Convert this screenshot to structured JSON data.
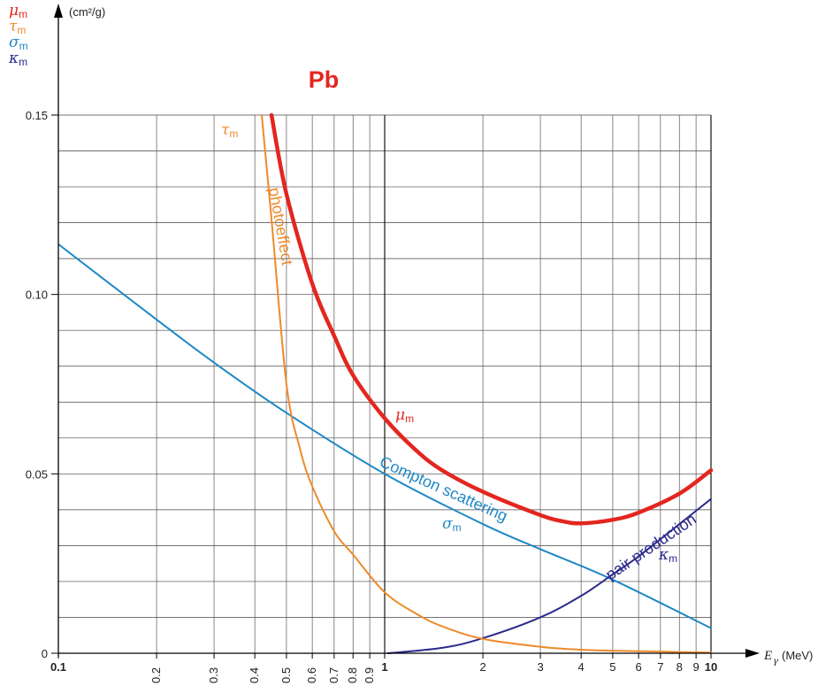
{
  "chart_data": {
    "type": "line",
    "title": "Pb",
    "xlabel_symbol": "E",
    "xlabel_subscript": "γ",
    "xlabel_unit": "(MeV)",
    "ylabel_unit": "(cm²/g)",
    "x_scale": "log",
    "xlim": [
      0.1,
      10
    ],
    "ylim": [
      0,
      0.15
    ],
    "grid": true,
    "x_ticks": [
      {
        "value": 0.1,
        "label": "0.1",
        "major": true
      },
      {
        "value": 0.2,
        "label": "0.2",
        "major": false
      },
      {
        "value": 0.3,
        "label": "0.3",
        "major": false
      },
      {
        "value": 0.4,
        "label": "0.4",
        "major": false
      },
      {
        "value": 0.5,
        "label": "0.5",
        "major": false
      },
      {
        "value": 0.6,
        "label": "0.6",
        "major": false
      },
      {
        "value": 0.7,
        "label": "0.7",
        "major": false
      },
      {
        "value": 0.8,
        "label": "0.8",
        "major": false
      },
      {
        "value": 0.9,
        "label": "0.9",
        "major": false
      },
      {
        "value": 1,
        "label": "1",
        "major": true
      },
      {
        "value": 2,
        "label": "2",
        "major": false
      },
      {
        "value": 3,
        "label": "3",
        "major": false
      },
      {
        "value": 4,
        "label": "4",
        "major": false
      },
      {
        "value": 5,
        "label": "5",
        "major": false
      },
      {
        "value": 6,
        "label": "6",
        "major": false
      },
      {
        "value": 7,
        "label": "7",
        "major": false
      },
      {
        "value": 8,
        "label": "8",
        "major": false
      },
      {
        "value": 9,
        "label": "9",
        "major": false
      },
      {
        "value": 10,
        "label": "10",
        "major": true
      }
    ],
    "y_ticks": [
      {
        "value": 0,
        "label": "0"
      },
      {
        "value": 0.05,
        "label": "0.05"
      },
      {
        "value": 0.1,
        "label": "0.10"
      },
      {
        "value": 0.15,
        "label": "0.15"
      }
    ],
    "y_minor_step": 0.01,
    "legend": [
      {
        "symbol": "μ",
        "sub": "m",
        "color": "#e3261f"
      },
      {
        "symbol": "τ",
        "sub": "m",
        "color": "#ee8a2b"
      },
      {
        "symbol": "σ",
        "sub": "m",
        "color": "#1f88c6"
      },
      {
        "symbol": "κ",
        "sub": "m",
        "color": "#2c2a8c"
      }
    ],
    "series": [
      {
        "symbol": "μ",
        "sub": "m",
        "color": "#e3261f",
        "label": "",
        "x": [
          0.45,
          0.5,
          0.6,
          0.7,
          0.8,
          1,
          1.25,
          1.5,
          2,
          3,
          3.5,
          4,
          5,
          6,
          8,
          10
        ],
        "y": [
          0.15,
          0.128,
          0.103,
          0.0885,
          0.0775,
          0.0655,
          0.0565,
          0.051,
          0.045,
          0.0385,
          0.0368,
          0.0362,
          0.0372,
          0.0392,
          0.0445,
          0.051
        ]
      },
      {
        "symbol": "τ",
        "sub": "m",
        "color": "#ee8a2b",
        "label": "photoeffect",
        "x": [
          0.42,
          0.45,
          0.5,
          0.55,
          0.6,
          0.7,
          0.8,
          1,
          1.25,
          1.5,
          2,
          3,
          4,
          5,
          10
        ],
        "y": [
          0.15,
          0.121,
          0.075,
          0.057,
          0.0465,
          0.034,
          0.0275,
          0.017,
          0.011,
          0.0075,
          0.004,
          0.0018,
          0.001,
          0.0007,
          0.0002
        ]
      },
      {
        "symbol": "σ",
        "sub": "m",
        "color": "#1f88c6",
        "label": "Compton scattering",
        "x": [
          0.1,
          0.2,
          0.3,
          0.5,
          1,
          2,
          3,
          5,
          10
        ],
        "y": [
          0.114,
          0.093,
          0.081,
          0.067,
          0.05,
          0.036,
          0.029,
          0.0205,
          0.007
        ]
      },
      {
        "symbol": "κ",
        "sub": "m",
        "color": "#2c2a8c",
        "label": "pair production",
        "x": [
          1.022,
          1.5,
          2,
          3,
          4,
          5,
          6,
          8,
          10
        ],
        "y": [
          0,
          0.0015,
          0.0042,
          0.01,
          0.016,
          0.022,
          0.027,
          0.036,
          0.043
        ]
      }
    ]
  }
}
